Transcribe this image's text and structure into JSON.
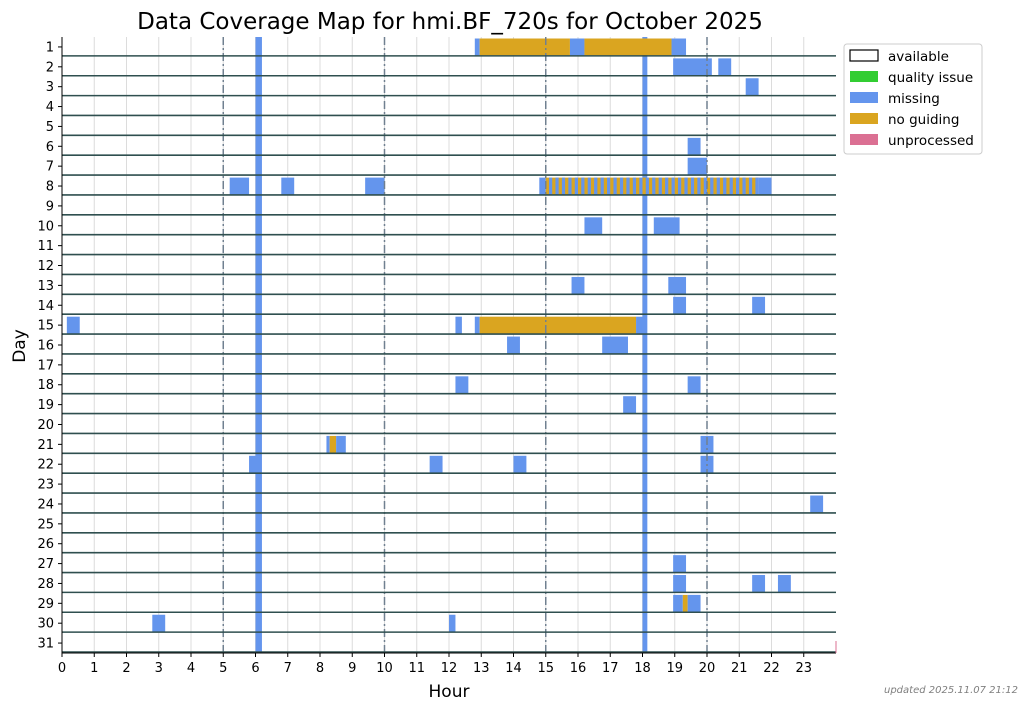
{
  "chart_data": {
    "type": "heatmap",
    "title": "Data Coverage Map for hmi.BF_720s for October 2025",
    "xlabel": "Hour",
    "ylabel": "Day",
    "x_ticks": [
      "0",
      "1",
      "2",
      "3",
      "4",
      "5",
      "6",
      "7",
      "8",
      "9",
      "10",
      "11",
      "12",
      "13",
      "14",
      "15",
      "16",
      "17",
      "18",
      "19",
      "20",
      "21",
      "22",
      "23"
    ],
    "y_ticks": [
      "1",
      "2",
      "3",
      "4",
      "5",
      "6",
      "7",
      "8",
      "9",
      "10",
      "11",
      "12",
      "13",
      "14",
      "15",
      "16",
      "17",
      "18",
      "19",
      "20",
      "21",
      "22",
      "23",
      "24",
      "25",
      "26",
      "27",
      "28",
      "29",
      "30",
      "31"
    ],
    "xlim": [
      0,
      24
    ],
    "ylim": [
      1,
      31
    ],
    "vertical_dashdot_lines_hours": [
      5,
      10,
      15,
      20
    ],
    "legend_position": "upper-right-outside",
    "legend": [
      {
        "label": "available",
        "color": "#ffffff",
        "outline": "#000000"
      },
      {
        "label": "quality issue",
        "color": "#32cd32"
      },
      {
        "label": "missing",
        "color": "#6495ed"
      },
      {
        "label": "no guiding",
        "color": "#daa520"
      },
      {
        "label": "unprocessed",
        "color": "#db7093"
      }
    ],
    "colors": {
      "missing": "#6495ed",
      "no_guiding": "#daa520",
      "row_divider": "#2f4f4f",
      "dashdot": "#708090",
      "grid": "#dcdcdc"
    },
    "full_month_missing_hours": [
      {
        "start": 6.0,
        "end": 6.2
      },
      {
        "start": 18.0,
        "end": 18.15
      }
    ],
    "segments": [
      {
        "day": 1,
        "start": 12.8,
        "end": 12.95,
        "status": "missing"
      },
      {
        "day": 1,
        "start": 12.95,
        "end": 15.75,
        "status": "no guiding"
      },
      {
        "day": 1,
        "start": 15.75,
        "end": 16.2,
        "status": "missing"
      },
      {
        "day": 1,
        "start": 16.2,
        "end": 18.9,
        "status": "no guiding"
      },
      {
        "day": 1,
        "start": 18.9,
        "end": 19.35,
        "status": "missing"
      },
      {
        "day": 2,
        "start": 18.95,
        "end": 20.15,
        "status": "missing"
      },
      {
        "day": 2,
        "start": 20.35,
        "end": 20.75,
        "status": "missing"
      },
      {
        "day": 3,
        "start": 21.2,
        "end": 21.6,
        "status": "missing"
      },
      {
        "day": 6,
        "start": 19.4,
        "end": 19.8,
        "status": "missing"
      },
      {
        "day": 7,
        "start": 19.4,
        "end": 20.0,
        "status": "missing"
      },
      {
        "day": 8,
        "start": 5.2,
        "end": 5.8,
        "status": "missing"
      },
      {
        "day": 8,
        "start": 6.8,
        "end": 7.2,
        "status": "missing"
      },
      {
        "day": 8,
        "start": 9.4,
        "end": 10.0,
        "status": "missing"
      },
      {
        "day": 8,
        "start": 14.8,
        "end": 15.0,
        "status": "missing"
      },
      {
        "day": 8,
        "start": 15.0,
        "end": 21.6,
        "status": "no guiding",
        "striped": true
      },
      {
        "day": 8,
        "start": 21.6,
        "end": 22.0,
        "status": "missing"
      },
      {
        "day": 10,
        "start": 16.2,
        "end": 16.75,
        "status": "missing"
      },
      {
        "day": 10,
        "start": 18.35,
        "end": 19.15,
        "status": "missing"
      },
      {
        "day": 13,
        "start": 15.8,
        "end": 16.2,
        "status": "missing"
      },
      {
        "day": 13,
        "start": 18.8,
        "end": 19.35,
        "status": "missing"
      },
      {
        "day": 14,
        "start": 18.95,
        "end": 19.35,
        "status": "missing"
      },
      {
        "day": 14,
        "start": 21.4,
        "end": 21.8,
        "status": "missing"
      },
      {
        "day": 15,
        "start": 0.15,
        "end": 0.55,
        "status": "missing"
      },
      {
        "day": 15,
        "start": 12.2,
        "end": 12.4,
        "status": "missing"
      },
      {
        "day": 15,
        "start": 12.8,
        "end": 12.95,
        "status": "missing"
      },
      {
        "day": 15,
        "start": 12.95,
        "end": 17.8,
        "status": "no guiding"
      },
      {
        "day": 15,
        "start": 17.8,
        "end": 18.0,
        "status": "missing"
      },
      {
        "day": 16,
        "start": 13.8,
        "end": 14.2,
        "status": "missing"
      },
      {
        "day": 16,
        "start": 16.75,
        "end": 17.55,
        "status": "missing"
      },
      {
        "day": 18,
        "start": 12.2,
        "end": 12.6,
        "status": "missing"
      },
      {
        "day": 18,
        "start": 19.4,
        "end": 19.8,
        "status": "missing"
      },
      {
        "day": 19,
        "start": 17.4,
        "end": 17.8,
        "status": "missing"
      },
      {
        "day": 21,
        "start": 8.2,
        "end": 8.3,
        "status": "missing"
      },
      {
        "day": 21,
        "start": 8.3,
        "end": 8.5,
        "status": "no guiding"
      },
      {
        "day": 21,
        "start": 8.5,
        "end": 8.8,
        "status": "missing"
      },
      {
        "day": 21,
        "start": 19.8,
        "end": 20.2,
        "status": "missing"
      },
      {
        "day": 22,
        "start": 5.8,
        "end": 6.0,
        "status": "missing"
      },
      {
        "day": 22,
        "start": 11.4,
        "end": 11.8,
        "status": "missing"
      },
      {
        "day": 22,
        "start": 14.0,
        "end": 14.4,
        "status": "missing"
      },
      {
        "day": 22,
        "start": 19.8,
        "end": 20.2,
        "status": "missing"
      },
      {
        "day": 24,
        "start": 23.2,
        "end": 23.6,
        "status": "missing"
      },
      {
        "day": 27,
        "start": 18.95,
        "end": 19.35,
        "status": "missing"
      },
      {
        "day": 28,
        "start": 18.95,
        "end": 19.35,
        "status": "missing"
      },
      {
        "day": 28,
        "start": 21.4,
        "end": 21.8,
        "status": "missing"
      },
      {
        "day": 28,
        "start": 22.2,
        "end": 22.6,
        "status": "missing"
      },
      {
        "day": 29,
        "start": 18.95,
        "end": 19.25,
        "status": "missing"
      },
      {
        "day": 29,
        "start": 19.25,
        "end": 19.4,
        "status": "no guiding"
      },
      {
        "day": 29,
        "start": 19.4,
        "end": 19.8,
        "status": "missing"
      },
      {
        "day": 30,
        "start": 2.8,
        "end": 3.2,
        "status": "missing"
      },
      {
        "day": 30,
        "start": 12.0,
        "end": 12.2,
        "status": "missing"
      }
    ]
  },
  "footer": {
    "updated": "updated 2025.11.07 21:12"
  }
}
